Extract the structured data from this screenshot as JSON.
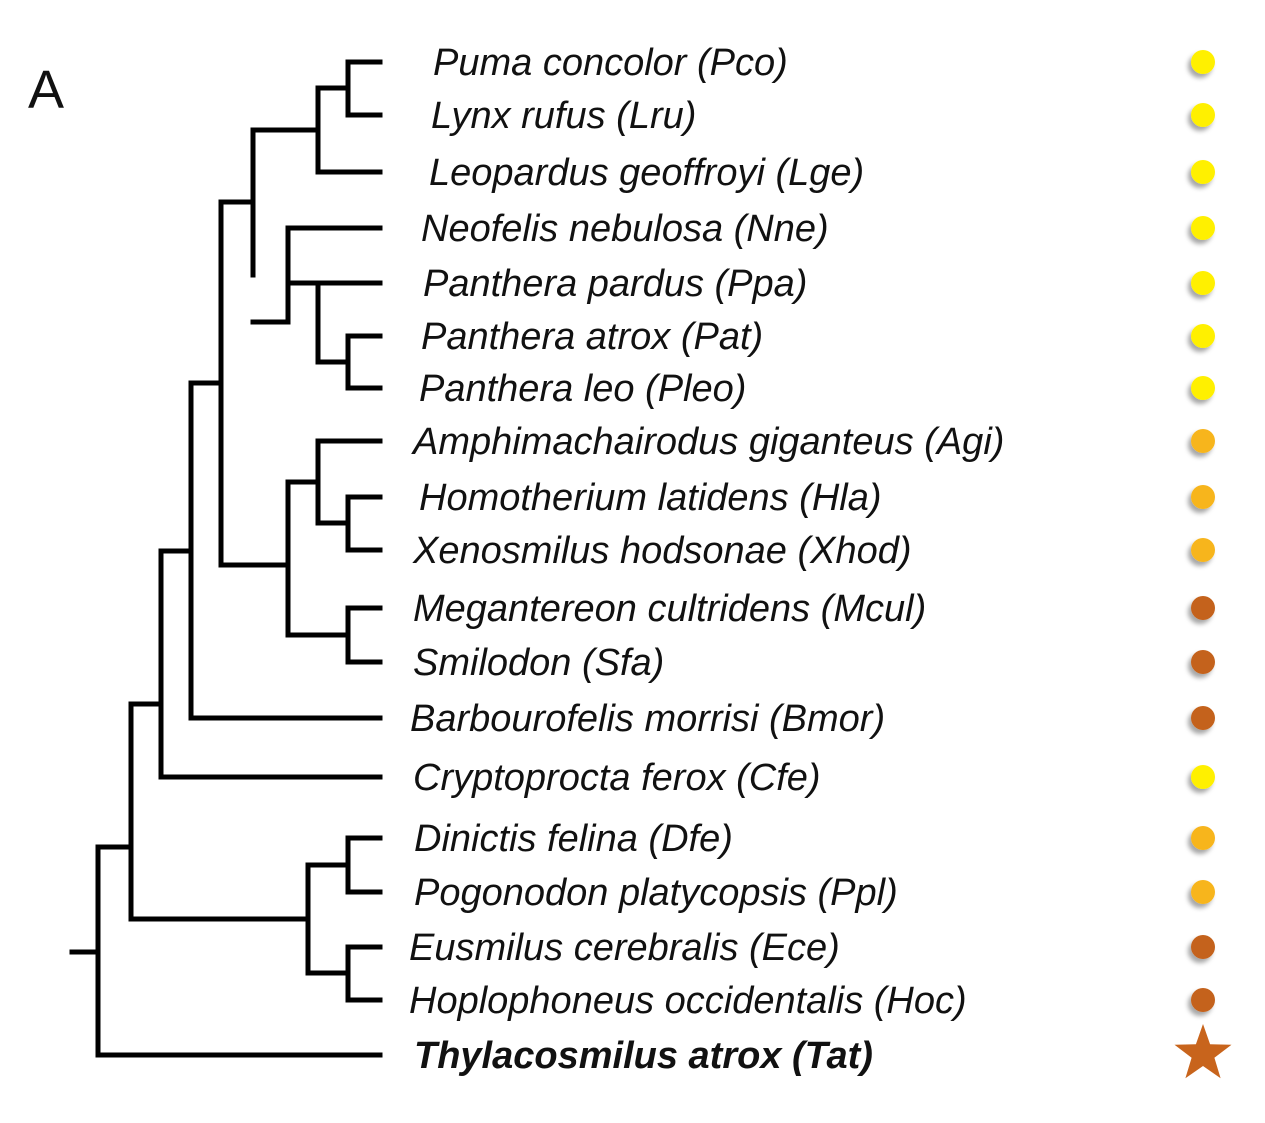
{
  "panel_label": "A",
  "colors": {
    "yellow": "#fff000",
    "gold": "#f7b51f",
    "brown": "#c4621b",
    "star": "#c8641c"
  },
  "taxa": [
    {
      "label": "Puma concolor (Pco)",
      "marker": "circle",
      "color": "yellow"
    },
    {
      "label": "Lynx rufus (Lru)",
      "marker": "circle",
      "color": "yellow"
    },
    {
      "label": "Leopardus geoffroyi (Lge)",
      "marker": "circle",
      "color": "yellow"
    },
    {
      "label": "Neofelis nebulosa (Nne)",
      "marker": "circle",
      "color": "yellow"
    },
    {
      "label": "Panthera pardus (Ppa)",
      "marker": "circle",
      "color": "yellow"
    },
    {
      "label": "Panthera atrox (Pat)",
      "marker": "circle",
      "color": "yellow"
    },
    {
      "label": "Panthera leo (Pleo)",
      "marker": "circle",
      "color": "yellow"
    },
    {
      "label": "Amphimachairodus giganteus (Agi)",
      "marker": "circle",
      "color": "gold"
    },
    {
      "label": "Homotherium latidens (Hla)",
      "marker": "circle",
      "color": "gold"
    },
    {
      "label": "Xenosmilus hodsonae (Xhod)",
      "marker": "circle",
      "color": "gold"
    },
    {
      "label": "Megantereon cultridens (Mcul)",
      "marker": "circle",
      "color": "brown"
    },
    {
      "label": "Smilodon (Sfa)",
      "marker": "circle",
      "color": "brown"
    },
    {
      "label": "Barbourofelis morrisi (Bmor)",
      "marker": "circle",
      "color": "brown"
    },
    {
      "label": "Cryptoprocta ferox (Cfe)",
      "marker": "circle",
      "color": "yellow"
    },
    {
      "label": "Dinictis felina (Dfe)",
      "marker": "circle",
      "color": "gold"
    },
    {
      "label": "Pogonodon platycopsis (Ppl)",
      "marker": "circle",
      "color": "gold"
    },
    {
      "label": "Eusmilus cerebralis (Ece)",
      "marker": "circle",
      "color": "brown"
    },
    {
      "label": "Hoplophoneus occidentalis (Hoc)",
      "marker": "circle",
      "color": "brown"
    },
    {
      "label": "Thylacosmilus atrox (Tat)",
      "marker": "star",
      "color": "star",
      "bold": true
    }
  ]
}
